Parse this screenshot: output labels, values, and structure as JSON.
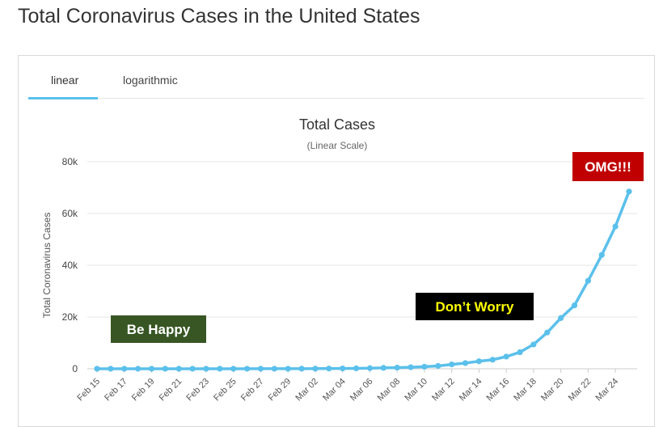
{
  "page": {
    "title": "Total Coronavirus Cases in the United States"
  },
  "tabs": [
    {
      "label": "linear",
      "active": true
    },
    {
      "label": "logarithmic",
      "active": false
    }
  ],
  "colors": {
    "line": "#5bc0eb",
    "tab_active": "#5bc0eb",
    "happy_bg": "#375623",
    "worry_bg": "#000000",
    "worry_text": "#ffff00",
    "omg_bg": "#c00000"
  },
  "chart_data": {
    "type": "line",
    "title": "Total Cases",
    "subtitle": "(Linear Scale)",
    "ylabel": "Total Coronavirus Cases",
    "xlabel": "",
    "ylim": [
      0,
      80000
    ],
    "yticks": [
      0,
      20000,
      40000,
      60000,
      80000
    ],
    "ytick_labels": [
      "0",
      "20k",
      "40k",
      "60k",
      "80k"
    ],
    "grid": true,
    "x": [
      "Feb 15",
      "Feb 16",
      "Feb 17",
      "Feb 18",
      "Feb 19",
      "Feb 20",
      "Feb 21",
      "Feb 22",
      "Feb 23",
      "Feb 24",
      "Feb 25",
      "Feb 26",
      "Feb 27",
      "Feb 28",
      "Feb 29",
      "Mar 01",
      "Mar 02",
      "Mar 03",
      "Mar 04",
      "Mar 05",
      "Mar 06",
      "Mar 07",
      "Mar 08",
      "Mar 09",
      "Mar 10",
      "Mar 11",
      "Mar 12",
      "Mar 13",
      "Mar 14",
      "Mar 15",
      "Mar 16",
      "Mar 17",
      "Mar 18",
      "Mar 19",
      "Mar 20",
      "Mar 21",
      "Mar 22",
      "Mar 23",
      "Mar 24",
      "Mar 25"
    ],
    "xtick_labels": [
      "Feb 15",
      "Feb 17",
      "Feb 19",
      "Feb 21",
      "Feb 23",
      "Feb 25",
      "Feb 27",
      "Feb 29",
      "Mar 02",
      "Mar 04",
      "Mar 06",
      "Mar 08",
      "Mar 10",
      "Mar 12",
      "Mar 14",
      "Mar 16",
      "Mar 18",
      "Mar 20",
      "Mar 22",
      "Mar 24"
    ],
    "series": [
      {
        "values": [
          15,
          15,
          15,
          15,
          15,
          15,
          15,
          15,
          15,
          15,
          15,
          15,
          16,
          17,
          24,
          30,
          53,
          80,
          120,
          160,
          230,
          340,
          450,
          600,
          800,
          1100,
          1700,
          2200,
          2900,
          3500,
          4700,
          6400,
          9400,
          14000,
          19600,
          24500,
          34000,
          44000,
          55000,
          68500
        ]
      }
    ],
    "annotations": [
      {
        "text": "Be Happy",
        "style": "happy"
      },
      {
        "text": "Don’t Worry",
        "style": "worry"
      },
      {
        "text": "OMG!!!",
        "style": "omg"
      }
    ]
  }
}
